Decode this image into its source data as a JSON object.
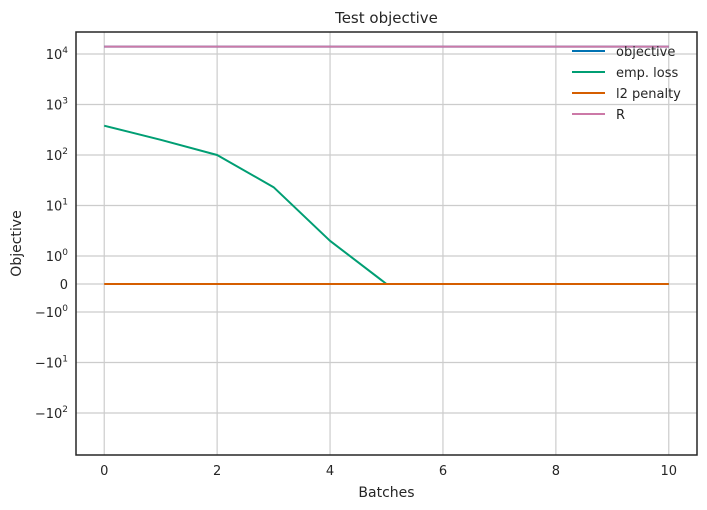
{
  "chart_data": {
    "type": "line",
    "title": "Test objective",
    "xlabel": "Batches",
    "ylabel": "Objective",
    "yscale": "symlog",
    "grid": true,
    "legend_position": "top-right",
    "xlim": [
      -0.5,
      10.5
    ],
    "x_ticks": [
      {
        "v": 0,
        "label": "0"
      },
      {
        "v": 2,
        "label": "2"
      },
      {
        "v": 4,
        "label": "4"
      },
      {
        "v": 6,
        "label": "6"
      },
      {
        "v": 8,
        "label": "8"
      },
      {
        "v": 10,
        "label": "10"
      }
    ],
    "y_ticks": [
      {
        "v": 10000,
        "base": "10",
        "exp": "4"
      },
      {
        "v": 1000,
        "base": "10",
        "exp": "3"
      },
      {
        "v": 100,
        "base": "10",
        "exp": "2"
      },
      {
        "v": 10,
        "base": "10",
        "exp": "1"
      },
      {
        "v": 1,
        "base": "10",
        "exp": "0"
      },
      {
        "v": 0,
        "base": "0",
        "exp": ""
      },
      {
        "v": -1,
        "base": "−10",
        "exp": "0"
      },
      {
        "v": -10,
        "base": "−10",
        "exp": "1"
      },
      {
        "v": -100,
        "base": "−10",
        "exp": "2"
      }
    ],
    "x": [
      0,
      1,
      2,
      3,
      4,
      5,
      6,
      7,
      8,
      9,
      10
    ],
    "series": [
      {
        "name": "objective",
        "color": "#0072b2",
        "values": [
          14000,
          14000,
          14000,
          14000,
          14000,
          14000,
          14000,
          14000,
          14000,
          14000,
          14000
        ]
      },
      {
        "name": "emp. loss",
        "color": "#009e73",
        "values": [
          380,
          200,
          100,
          23,
          2,
          0,
          0,
          0,
          0,
          0,
          0
        ]
      },
      {
        "name": "l2 penalty",
        "color": "#d55e00",
        "values": [
          0,
          0,
          0,
          0,
          0,
          0,
          0,
          0,
          0,
          0,
          0
        ]
      },
      {
        "name": "R",
        "color": "#cc79a7",
        "values": [
          14000,
          14000,
          14000,
          14000,
          14000,
          14000,
          14000,
          14000,
          14000,
          14000,
          14000
        ]
      }
    ]
  }
}
